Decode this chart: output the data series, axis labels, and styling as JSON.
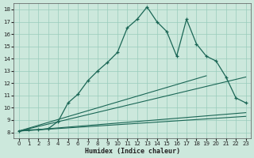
{
  "xlabel": "Humidex (Indice chaleur)",
  "xlim": [
    -0.5,
    23.5
  ],
  "ylim": [
    7.5,
    18.5
  ],
  "yticks": [
    8,
    9,
    10,
    11,
    12,
    13,
    14,
    15,
    16,
    17,
    18
  ],
  "xticks": [
    0,
    1,
    2,
    3,
    4,
    5,
    6,
    7,
    8,
    9,
    10,
    11,
    12,
    13,
    14,
    15,
    16,
    17,
    18,
    19,
    20,
    21,
    22,
    23
  ],
  "background_color": "#cce8dc",
  "grid_color": "#99ccbb",
  "line_color": "#1a6655",
  "main_line": {
    "x": [
      0,
      1,
      2,
      3,
      4,
      5,
      6,
      7,
      8,
      9,
      10,
      11,
      12,
      13,
      14,
      15,
      16,
      17,
      18,
      19,
      20,
      21,
      22,
      23
    ],
    "y": [
      8.1,
      8.2,
      8.2,
      8.3,
      8.9,
      10.4,
      11.1,
      12.2,
      13.0,
      13.7,
      14.5,
      16.5,
      17.2,
      18.2,
      17.0,
      16.2,
      14.2,
      17.2,
      15.2,
      14.2,
      13.8,
      12.5,
      10.8,
      10.4
    ]
  },
  "line_flat1": {
    "x": [
      0,
      23
    ],
    "y": [
      8.1,
      9.3
    ]
  },
  "line_flat2": {
    "x": [
      0,
      23
    ],
    "y": [
      8.1,
      9.6
    ]
  },
  "line_diag1": {
    "x": [
      0,
      19
    ],
    "y": [
      8.1,
      12.6
    ]
  },
  "line_diag2": {
    "x": [
      0,
      23
    ],
    "y": [
      8.1,
      12.5
    ]
  }
}
